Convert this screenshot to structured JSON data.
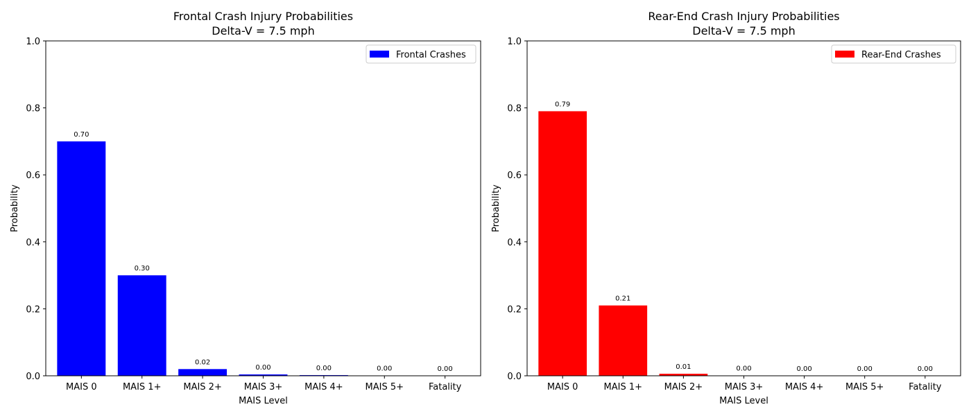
{
  "chart_data": [
    {
      "type": "bar",
      "title": "Frontal Crash Injury Probabilities",
      "subtitle": "Delta-V = 7.5 mph",
      "xlabel": "MAIS Level",
      "ylabel": "Probability",
      "categories": [
        "MAIS 0",
        "MAIS 1+",
        "MAIS 2+",
        "MAIS 3+",
        "MAIS 4+",
        "MAIS 5+",
        "Fatality"
      ],
      "series": [
        {
          "name": "Frontal Crashes",
          "values": [
            0.7,
            0.3,
            0.02,
            0.004,
            0.002,
            0.001,
            0.0
          ],
          "labels": [
            "0.70",
            "0.30",
            "0.02",
            "0.00",
            "0.00",
            "0.00",
            "0.00"
          ],
          "color": "#0000ff"
        }
      ],
      "ylim": [
        0,
        1.0
      ],
      "yticks": [
        0.0,
        0.2,
        0.4,
        0.6,
        0.8,
        1.0
      ],
      "ytick_labels": [
        "0.0",
        "0.2",
        "0.4",
        "0.6",
        "0.8",
        "1.0"
      ],
      "legend_position": "top-right",
      "grid": false
    },
    {
      "type": "bar",
      "title": "Rear-End Crash Injury Probabilities",
      "subtitle": "Delta-V = 7.5 mph",
      "xlabel": "MAIS Level",
      "ylabel": "Probability",
      "categories": [
        "MAIS 0",
        "MAIS 1+",
        "MAIS 2+",
        "MAIS 3+",
        "MAIS 4+",
        "MAIS 5+",
        "Fatality"
      ],
      "series": [
        {
          "name": "Rear-End Crashes",
          "values": [
            0.79,
            0.21,
            0.006,
            0.001,
            0.0,
            0.0,
            0.0
          ],
          "labels": [
            "0.79",
            "0.21",
            "0.01",
            "0.00",
            "0.00",
            "0.00",
            "0.00"
          ],
          "color": "#ff0000"
        }
      ],
      "ylim": [
        0,
        1.0
      ],
      "yticks": [
        0.0,
        0.2,
        0.4,
        0.6,
        0.8,
        1.0
      ],
      "ytick_labels": [
        "0.0",
        "0.2",
        "0.4",
        "0.6",
        "0.8",
        "1.0"
      ],
      "legend_position": "top-right",
      "grid": false
    }
  ]
}
